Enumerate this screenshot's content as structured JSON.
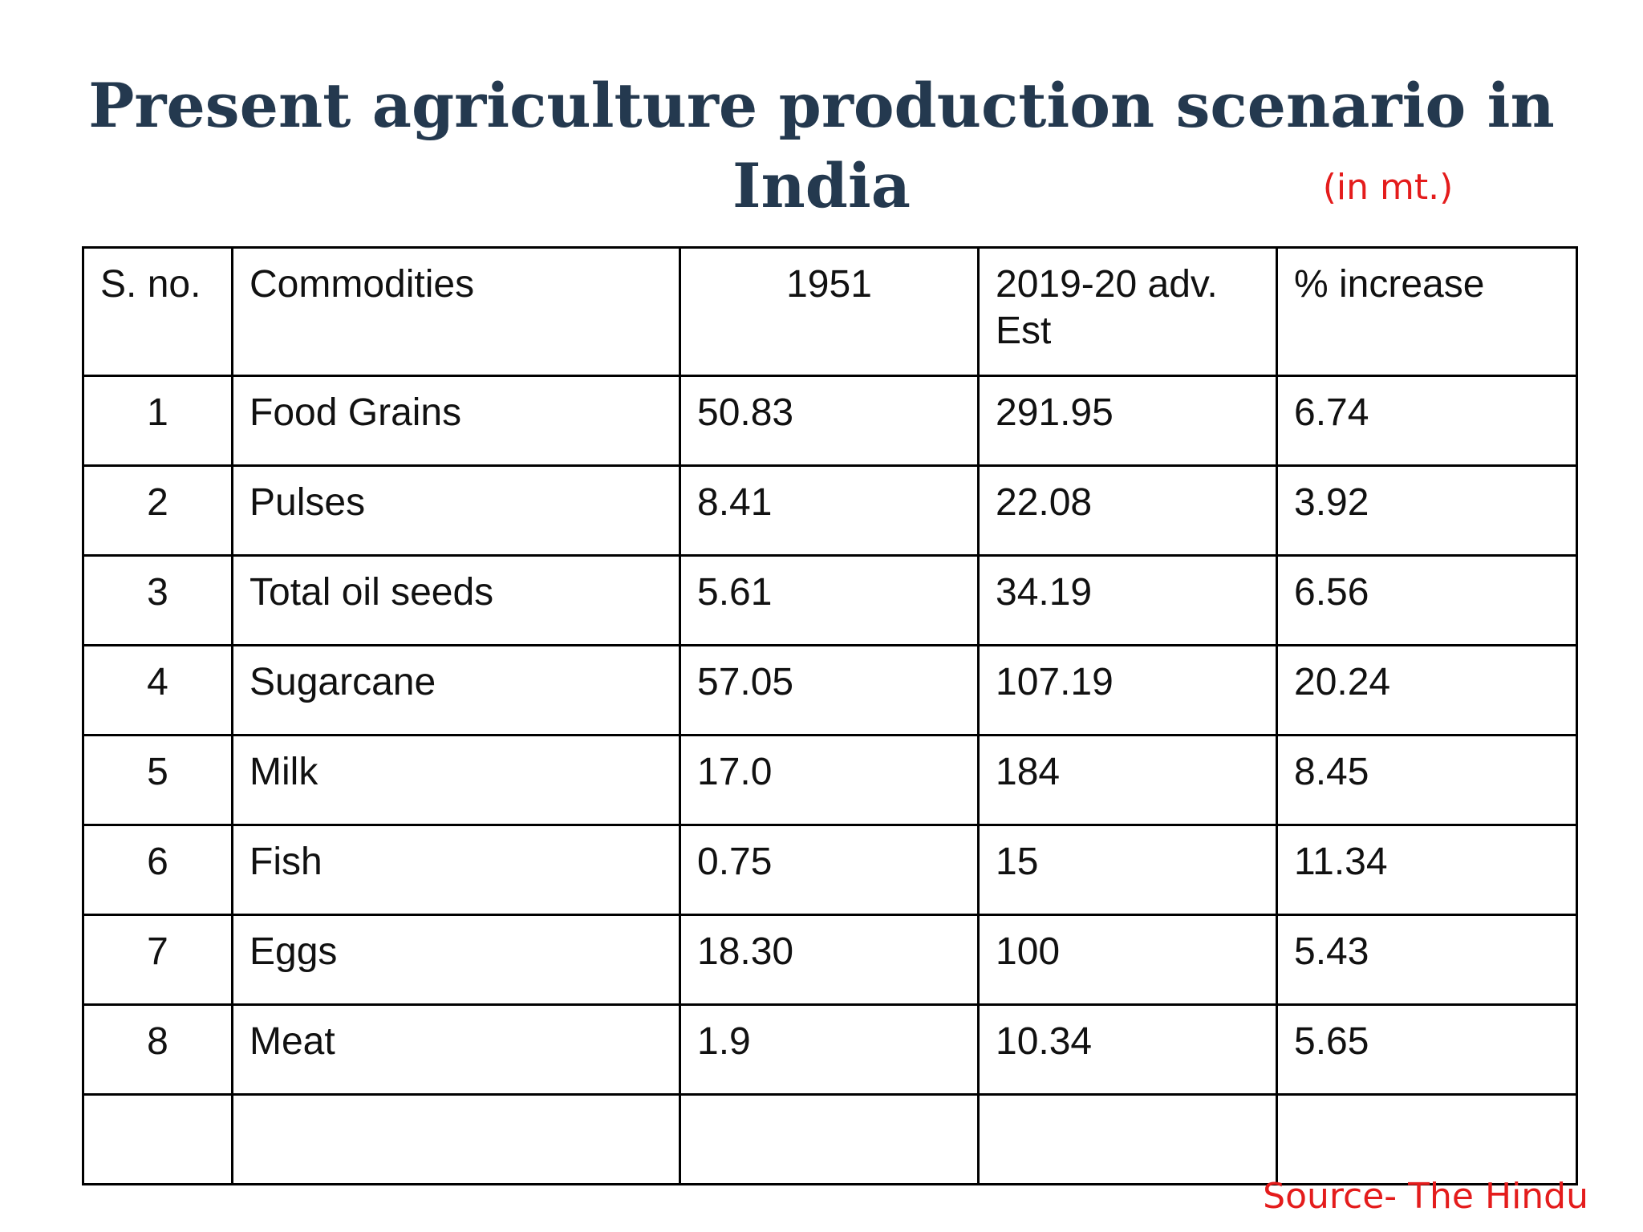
{
  "slide": {
    "title": "Present agriculture production scenario in India",
    "unit_note": "(in mt.)",
    "source": "Source- The Hindu"
  },
  "table": {
    "headers": [
      "S. no.",
      "Commodities",
      "1951",
      "2019-20 adv. Est",
      "% increase"
    ],
    "rows": [
      [
        "1",
        "Food Grains",
        "50.83",
        "291.95",
        "6.74"
      ],
      [
        "2",
        "Pulses",
        "8.41",
        "22.08",
        "3.92"
      ],
      [
        "3",
        "Total oil seeds",
        "5.61",
        "34.19",
        "6.56"
      ],
      [
        "4",
        "Sugarcane",
        "57.05",
        "107.19",
        "20.24"
      ],
      [
        "5",
        "Milk",
        "17.0",
        "184",
        "8.45"
      ],
      [
        "6",
        "Fish",
        "0.75",
        "15",
        "11.34"
      ],
      [
        "7",
        "Eggs",
        "18.30",
        "100",
        "5.43"
      ],
      [
        "8",
        "Meat",
        "1.9",
        "10.34",
        "5.65"
      ],
      [
        "",
        "",
        "",
        "",
        ""
      ]
    ]
  },
  "colors": {
    "title": "#24394f",
    "note": "#e41c1c",
    "border": "#000000"
  }
}
